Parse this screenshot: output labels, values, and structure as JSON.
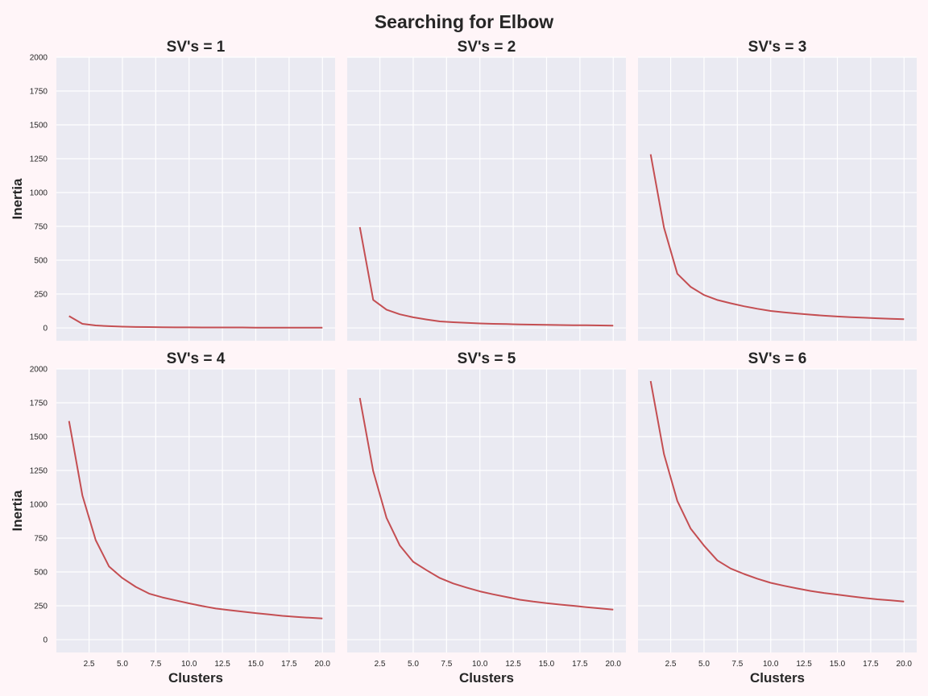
{
  "title": "Searching for Elbow",
  "colors": {
    "background": "#fff5f8",
    "plot_bg": "#eaeaf2",
    "grid": "#ffffff",
    "line": "#c44e52"
  },
  "chart_data": {
    "type": "line",
    "title": "Searching for Elbow",
    "xlabel": "Clusters",
    "ylabel": "Inertia",
    "xlim": [
      0.05,
      20.95
    ],
    "ylim": [
      -95,
      2000
    ],
    "xticks": [
      2.5,
      5.0,
      7.5,
      10.0,
      12.5,
      15.0,
      17.5,
      20.0
    ],
    "yticks": [
      0,
      250,
      500,
      750,
      1000,
      1250,
      1500,
      1750,
      2000
    ],
    "grid": true,
    "x": [
      1,
      2,
      3,
      4,
      5,
      6,
      7,
      8,
      9,
      10,
      11,
      12,
      13,
      14,
      15,
      16,
      17,
      18,
      19,
      20
    ],
    "panels": [
      {
        "title": "SV's = 1",
        "values": [
          87,
          30,
          18,
          13,
          9,
          7,
          6,
          5,
          4,
          4,
          3,
          3,
          3,
          3,
          2,
          2,
          2,
          2,
          2,
          2
        ]
      },
      {
        "title": "SV's = 2",
        "values": [
          745,
          207,
          135,
          100,
          78,
          62,
          48,
          42,
          37,
          33,
          30,
          28,
          26,
          24,
          22,
          21,
          20,
          19,
          18,
          17
        ]
      },
      {
        "title": "SV's = 3",
        "values": [
          1282,
          740,
          400,
          303,
          243,
          206,
          182,
          160,
          141,
          125,
          115,
          106,
          98,
          90,
          84,
          79,
          75,
          71,
          67,
          64
        ]
      },
      {
        "title": "SV's = 4",
        "values": [
          1615,
          1065,
          735,
          540,
          455,
          390,
          340,
          312,
          290,
          268,
          248,
          230,
          218,
          207,
          196,
          186,
          176,
          168,
          162,
          157
        ]
      },
      {
        "title": "SV's = 5",
        "values": [
          1785,
          1245,
          900,
          695,
          575,
          513,
          455,
          415,
          385,
          357,
          335,
          315,
          295,
          281,
          270,
          259,
          250,
          240,
          231,
          222
        ]
      },
      {
        "title": "SV's = 6",
        "values": [
          1910,
          1370,
          1025,
          820,
          695,
          585,
          525,
          485,
          450,
          420,
          398,
          378,
          360,
          345,
          333,
          320,
          308,
          298,
          290,
          282
        ]
      }
    ]
  }
}
